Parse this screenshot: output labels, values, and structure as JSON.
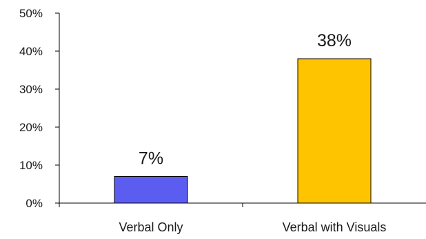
{
  "chart_data": {
    "type": "bar",
    "categories": [
      "Verbal Only",
      "Verbal with Visuals"
    ],
    "values": [
      7,
      38
    ],
    "data_labels": [
      "7%",
      "38%"
    ],
    "bar_colors": [
      "#5b5cf0",
      "#ffc400"
    ],
    "ylim": [
      0,
      50
    ],
    "yticks": [
      0,
      10,
      20,
      30,
      40,
      50
    ],
    "ytick_labels": [
      "0%",
      "10%",
      "20%",
      "30%",
      "40%",
      "50%"
    ],
    "grid": false,
    "title": "",
    "xlabel": "",
    "ylabel": ""
  }
}
